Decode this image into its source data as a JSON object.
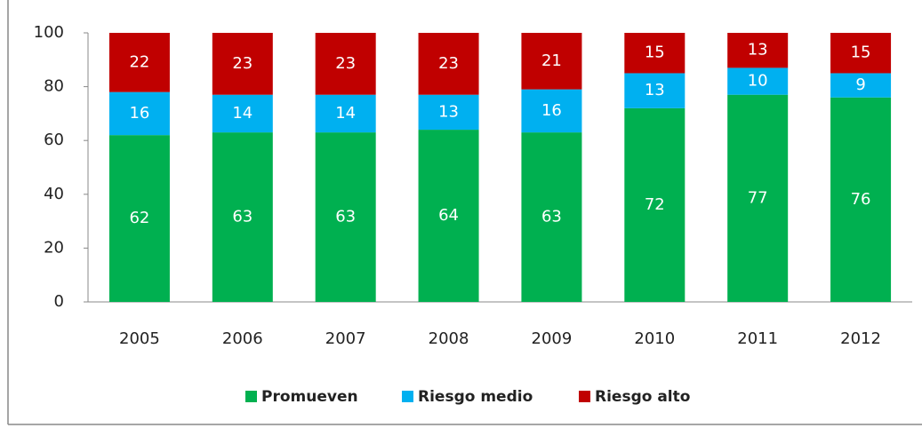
{
  "chart_data": {
    "type": "stacked_bar",
    "categories": [
      "2005",
      "2006",
      "2007",
      "2008",
      "2009",
      "2010",
      "2011",
      "2012"
    ],
    "series": [
      {
        "name": "Promueven",
        "color": "#00b050",
        "values": [
          62,
          63,
          63,
          64,
          63,
          72,
          77,
          76
        ]
      },
      {
        "name": "Riesgo medio",
        "color": "#00b0f0",
        "values": [
          16,
          14,
          14,
          13,
          16,
          13,
          10,
          9
        ]
      },
      {
        "name": "Riesgo alto",
        "color": "#c00000",
        "values": [
          22,
          23,
          23,
          23,
          21,
          15,
          13,
          15
        ]
      }
    ],
    "ylim": [
      0,
      100
    ],
    "yticks": [
      0,
      20,
      40,
      60,
      80,
      100
    ],
    "legend": "bottom"
  }
}
